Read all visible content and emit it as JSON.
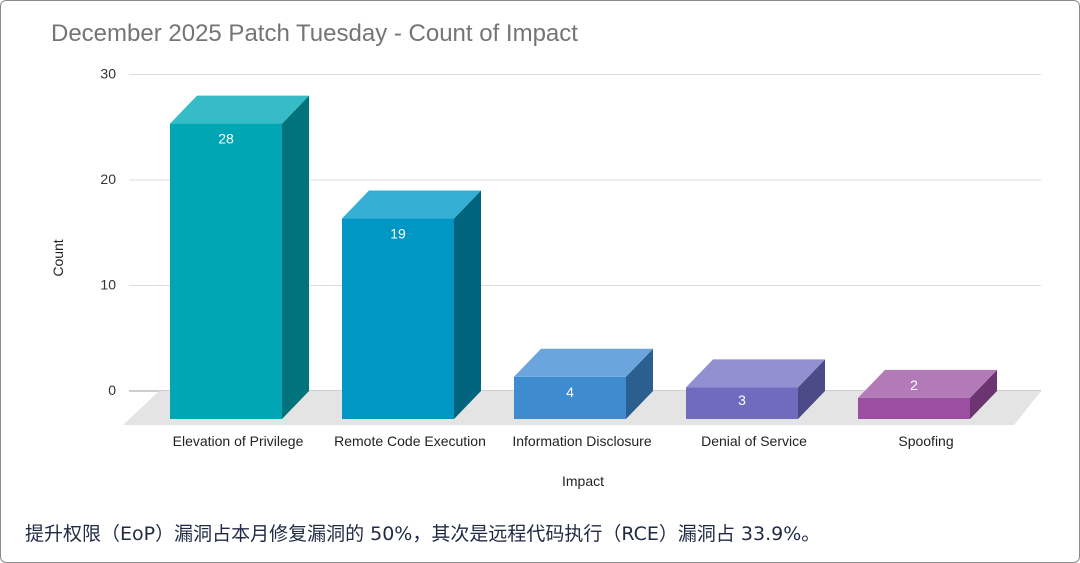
{
  "chart_data": {
    "type": "bar",
    "title": "December 2025 Patch Tuesday - Count of Impact",
    "xlabel": "Impact",
    "ylabel": "Count",
    "ylim": [
      0,
      30
    ],
    "yticks": [
      0,
      10,
      20,
      30
    ],
    "grid": true,
    "legend": "none",
    "categories": [
      "Elevation of Privilege",
      "Remote Code Execution",
      "Information Disclosure",
      "Denial of Service",
      "Spoofing"
    ],
    "values": [
      28,
      19,
      4,
      3,
      2
    ],
    "colors": [
      "#00a6b4",
      "#0097c4",
      "#3f8bd0",
      "#6f6cc0",
      "#9b4fa0"
    ],
    "side_colors": [
      "#00737d",
      "#00647f",
      "#2a5f8f",
      "#4c4a87",
      "#6d3472"
    ],
    "top_colors": [
      "#35bcc6",
      "#35afd3",
      "#6aa5de",
      "#9390d2",
      "#b27bb8"
    ]
  },
  "caption": "提升权限（EoP）漏洞占本月修复漏洞的 50%，其次是远程代码执行（RCE）漏洞占 33.9%。"
}
